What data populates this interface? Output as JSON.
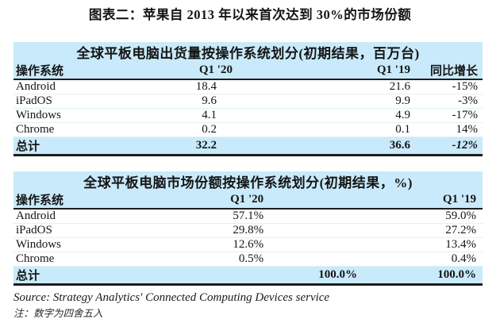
{
  "caption": "图表二：苹果自 2013 年以来首次达到 30%的市场份额",
  "colors": {
    "band": "#c9eafa",
    "rule": "#1d1d1d"
  },
  "table1": {
    "title": "全球平板电脑出货量按操作系统划分(初期结果，百万台)",
    "columns": [
      "操作系统",
      "Q1 '20",
      "Q1 '19",
      "同比增长"
    ],
    "rows": [
      {
        "os": "Android",
        "q1_20": "18.4",
        "q1_19": "21.6",
        "yoy": "-15%"
      },
      {
        "os": "iPadOS",
        "q1_20": "9.6",
        "q1_19": "9.9",
        "yoy": "-3%"
      },
      {
        "os": "Windows",
        "q1_20": "4.1",
        "q1_19": "4.9",
        "yoy": "-17%"
      },
      {
        "os": "Chrome",
        "q1_20": "0.2",
        "q1_19": "0.1",
        "yoy": "14%"
      }
    ],
    "total": {
      "os": "总计",
      "q1_20": "32.2",
      "q1_19": "36.6",
      "yoy": "-12%"
    }
  },
  "table2": {
    "title": "全球平板电脑市场份额按操作系统划分(初期结果，%)",
    "columns": [
      "操作系统",
      "Q1 '20",
      "Q1 '19"
    ],
    "rows": [
      {
        "os": "Android",
        "q1_20": "57.1%",
        "q1_19": "59.0%"
      },
      {
        "os": "iPadOS",
        "q1_20": "29.8%",
        "q1_19": "27.2%"
      },
      {
        "os": "Windows",
        "q1_20": "12.6%",
        "q1_19": "13.4%"
      },
      {
        "os": "Chrome",
        "q1_20": "0.5%",
        "q1_19": "0.4%"
      }
    ],
    "total": {
      "os": "总计",
      "q1_20": "100.0%",
      "q1_19": "100.0%"
    }
  },
  "footer": {
    "source": "Source: Strategy Analytics' Connected Computing Devices service",
    "note": "注：数字为四舍五入"
  }
}
